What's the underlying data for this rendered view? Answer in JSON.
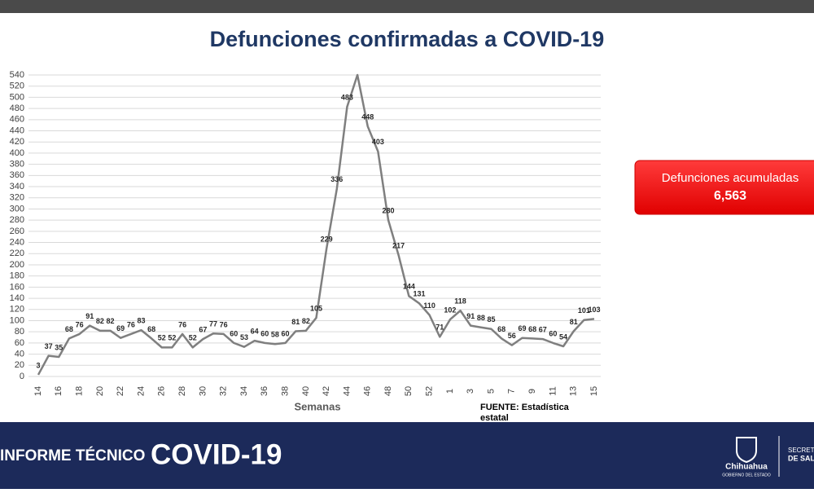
{
  "chart_data": {
    "type": "line",
    "title": "Defunciones confirmadas a COVID-19",
    "x_label": "Semanas",
    "categories": [
      "14",
      null,
      "16",
      null,
      "18",
      null,
      "20",
      null,
      "22",
      null,
      "24",
      null,
      "26",
      null,
      "28",
      null,
      "30",
      null,
      "32",
      null,
      "34",
      null,
      "36",
      null,
      "38",
      null,
      "40",
      null,
      "42",
      null,
      "44",
      null,
      "46",
      null,
      "48",
      null,
      "50",
      null,
      "52",
      null,
      "1",
      null,
      "3",
      null,
      "5",
      null,
      "7",
      null,
      "9",
      null,
      "11",
      null,
      "13",
      null,
      "15"
    ],
    "series": [
      {
        "name": null,
        "color": "#7f7f7f",
        "values": [
          3,
          37,
          35,
          68,
          76,
          91,
          82,
          82,
          69,
          76,
          83,
          68,
          52,
          52,
          76,
          52,
          67,
          77,
          76,
          60,
          53,
          64,
          60,
          58,
          60,
          81,
          82,
          105,
          229,
          336,
          483,
          540,
          448,
          403,
          280,
          217,
          144,
          131,
          110,
          71,
          102,
          118,
          91,
          88,
          85,
          68,
          56,
          69,
          68,
          67,
          60,
          54,
          81,
          101,
          103
        ],
        "value_labels": [
          "3",
          "37",
          "35",
          "68",
          "76",
          "91",
          "82",
          "82",
          "69",
          "76",
          "83",
          "68",
          "52",
          "52",
          "76",
          "52",
          "67",
          "77",
          "76",
          "60",
          "53",
          "64",
          "60",
          "58",
          "60",
          "81",
          "82",
          "105",
          "229",
          "336",
          "483",
          null,
          "448",
          "403",
          "280",
          "217",
          "144",
          "131",
          "110",
          "71",
          "102",
          "118",
          "91",
          "88",
          "85",
          "68",
          "56",
          "69",
          "68",
          "67",
          "60",
          "54",
          "81",
          "101",
          "103"
        ]
      }
    ],
    "ylim": [
      0,
      540
    ],
    "yticks": [
      0,
      20,
      40,
      60,
      80,
      100,
      120,
      140,
      160,
      180,
      200,
      220,
      240,
      260,
      280,
      300,
      320,
      340,
      360,
      380,
      400,
      420,
      440,
      460,
      480,
      500,
      520,
      540
    ],
    "grid": true,
    "source": "FUENTE: Estadística estatal"
  },
  "callout": {
    "label": "Defunciones acumuladas",
    "value": "6,563"
  },
  "footer": {
    "prefix": "INFORME TÉCNICO",
    "title": "COVID-19",
    "logo": "Chihuahua",
    "logo_sub": "GOBIERNO DEL ESTADO",
    "dept1": "SECRETA",
    "dept2": "DE SAL"
  }
}
